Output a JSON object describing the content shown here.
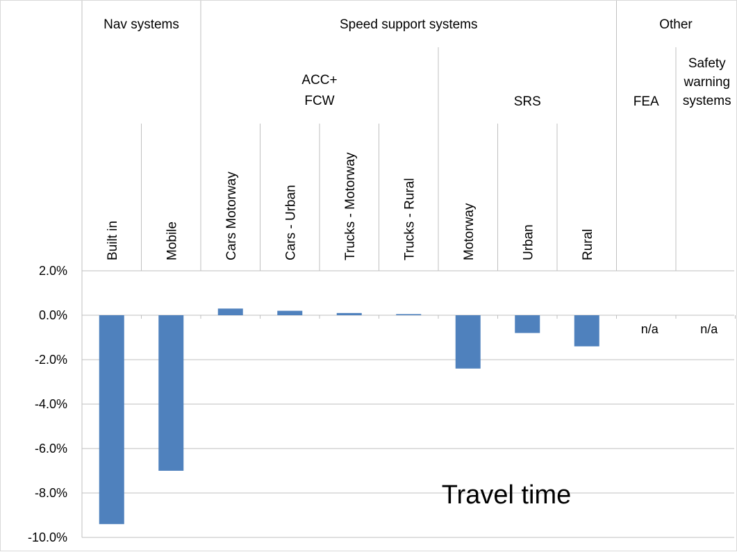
{
  "chart_data": {
    "type": "bar",
    "title": "Travel time",
    "xlabel": "",
    "ylabel": "",
    "ylim": [
      -10,
      2
    ],
    "yticks": [
      "2.0%",
      "0.0%",
      "-2.0%",
      "-4.0%",
      "-6.0%",
      "-8.0%",
      "-10.0%"
    ],
    "ytick_values": [
      2,
      0,
      -2,
      -4,
      -6,
      -8,
      -10
    ],
    "grid": true,
    "bar_color": "#4F81BD",
    "groups": [
      {
        "label": "Nav systems",
        "span": [
          0,
          1
        ]
      },
      {
        "label": "Speed support systems",
        "span": [
          2,
          8
        ]
      },
      {
        "label": "Other",
        "span": [
          9,
          10
        ]
      }
    ],
    "subgroups": [
      {
        "label": "ACC+\nFCW",
        "span": [
          2,
          5
        ]
      },
      {
        "label": "SRS",
        "span": [
          6,
          8
        ]
      },
      {
        "label": "FEA",
        "span": [
          9,
          9
        ]
      },
      {
        "label": "Safety\nwarning\nsystems",
        "span": [
          10,
          10
        ]
      }
    ],
    "categories": [
      "Built in",
      "Mobile",
      "Cars Motorway",
      "Cars - Urban",
      "Trucks - Motorway",
      "Trucks - Rural",
      "Motorway",
      "Urban",
      "Rural",
      "",
      ""
    ],
    "values": [
      -9.4,
      -7.0,
      0.3,
      0.2,
      0.1,
      0.05,
      -2.4,
      -0.8,
      -1.4,
      null,
      null
    ],
    "annotations": [
      "n/a",
      "n/a"
    ]
  }
}
